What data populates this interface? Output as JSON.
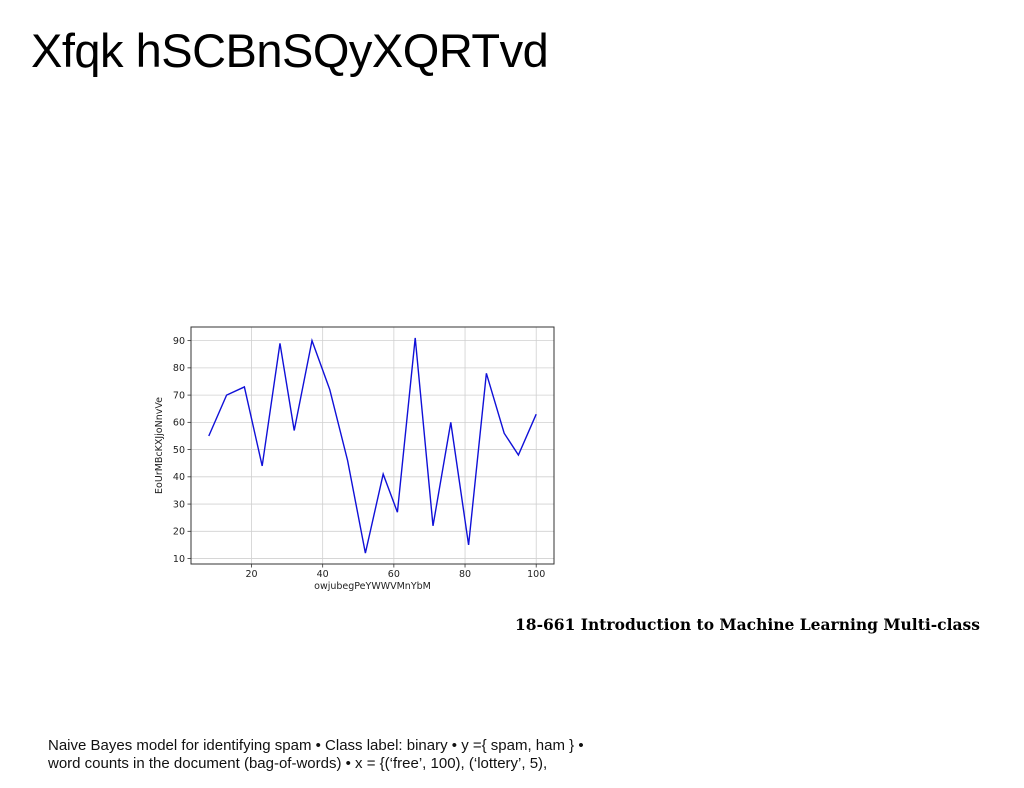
{
  "slide": {
    "title": "Xfqk hSCBnSQyXQRTvd",
    "course": "18-661 Introduction to Machine Learning Multi-class",
    "body_lines": [
      "Naive Bayes model for identifying spam • Class label: binary • y ={ spam, ham } •",
      "word counts in the document (bag-of-words) • x = {(‘free’, 100), (‘lottery’, 5),"
    ]
  },
  "chart_data": {
    "type": "line",
    "xlabel": "owjubegPeYWWVMnYbM",
    "ylabel": "EoUrMBcKXJjoNnvVe",
    "xlim": [
      3,
      105
    ],
    "ylim": [
      8,
      95
    ],
    "xticks": [
      20,
      40,
      60,
      80,
      100
    ],
    "yticks": [
      10,
      20,
      30,
      40,
      50,
      60,
      70,
      80,
      90
    ],
    "grid": true,
    "line_color": "#1010d8",
    "x": [
      8,
      13,
      18,
      23,
      28,
      32,
      37,
      42,
      47,
      52,
      57,
      61,
      66,
      71,
      76,
      81,
      86,
      91,
      95,
      100
    ],
    "y": [
      55,
      70,
      73,
      44,
      89,
      57,
      90,
      72,
      46,
      12,
      41,
      27,
      91,
      22,
      60,
      15,
      78,
      56,
      48,
      63
    ]
  }
}
